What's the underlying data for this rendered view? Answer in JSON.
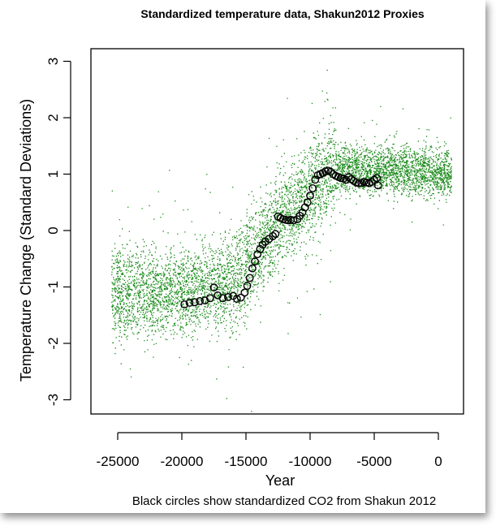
{
  "chart_data": {
    "type": "scatter",
    "title": "Standardized temperature data, Shakun2012 Proxies",
    "xlabel": "Year",
    "ylabel": "Temperature Change (Standard Deviations)",
    "footnote": "Black circles show standardized CO2 from Shakun 2012",
    "xlim": [
      -26000,
      1000
    ],
    "ylim": [
      -3.2,
      3.2
    ],
    "xticks": [
      -25000,
      -20000,
      -15000,
      -10000,
      -5000,
      0
    ],
    "xtick_labels": [
      "-25000",
      "-20000",
      "-15000",
      "-10000",
      "-5000",
      "0"
    ],
    "yticks": [
      -3,
      -2,
      -1,
      0,
      1,
      2,
      3
    ],
    "ytick_labels": [
      "-3",
      "-2",
      "-1",
      "0",
      "1",
      "2",
      "3"
    ],
    "series": [
      {
        "marker": "dot",
        "color": "#1a8a1a",
        "trend": [
          [
            -26000,
            -1.1
          ],
          [
            -22000,
            -1.1
          ],
          [
            -18000,
            -1.0
          ],
          [
            -16000,
            -0.85
          ],
          [
            -15000,
            -0.6
          ],
          [
            -14000,
            -0.3
          ],
          [
            -13000,
            0.05
          ],
          [
            -12000,
            0.25
          ],
          [
            -11000,
            0.45
          ],
          [
            -10000,
            0.7
          ],
          [
            -9000,
            0.95
          ],
          [
            -8000,
            1.1
          ],
          [
            -6000,
            1.1
          ],
          [
            -3000,
            1.1
          ],
          [
            1000,
            1.0
          ]
        ]
      },
      {
        "marker": "open-circle",
        "color": "#000000",
        "values": [
          [
            -19800,
            -1.31
          ],
          [
            -19400,
            -1.28
          ],
          [
            -19000,
            -1.27
          ],
          [
            -18600,
            -1.25
          ],
          [
            -18200,
            -1.24
          ],
          [
            -17800,
            -1.2
          ],
          [
            -17500,
            -1.01
          ],
          [
            -17200,
            -1.15
          ],
          [
            -16800,
            -1.2
          ],
          [
            -16400,
            -1.18
          ],
          [
            -16000,
            -1.16
          ],
          [
            -15700,
            -1.21
          ],
          [
            -15400,
            -1.19
          ],
          [
            -15100,
            -1.1
          ],
          [
            -14900,
            -0.98
          ],
          [
            -14700,
            -0.84
          ],
          [
            -14500,
            -0.67
          ],
          [
            -14300,
            -0.55
          ],
          [
            -14100,
            -0.42
          ],
          [
            -13900,
            -0.33
          ],
          [
            -13700,
            -0.25
          ],
          [
            -13500,
            -0.2
          ],
          [
            -13200,
            -0.15
          ],
          [
            -12900,
            -0.1
          ],
          [
            -12700,
            -0.06
          ],
          [
            -12500,
            0.25
          ],
          [
            -12300,
            0.22
          ],
          [
            -12100,
            0.2
          ],
          [
            -11900,
            0.19
          ],
          [
            -11700,
            0.18
          ],
          [
            -11500,
            0.19
          ],
          [
            -11300,
            0.18
          ],
          [
            -11000,
            0.2
          ],
          [
            -10800,
            0.26
          ],
          [
            -10600,
            0.32
          ],
          [
            -10400,
            0.41
          ],
          [
            -10200,
            0.5
          ],
          [
            -10000,
            0.62
          ],
          [
            -9800,
            0.75
          ],
          [
            -9600,
            0.9
          ],
          [
            -9400,
            0.98
          ],
          [
            -9200,
            1.0
          ],
          [
            -9000,
            1.02
          ],
          [
            -8800,
            1.05
          ],
          [
            -8600,
            1.06
          ],
          [
            -8400,
            1.04
          ],
          [
            -8200,
            1.0
          ],
          [
            -8000,
            0.97
          ],
          [
            -7800,
            0.95
          ],
          [
            -7600,
            0.93
          ],
          [
            -7400,
            0.92
          ],
          [
            -7200,
            0.9
          ],
          [
            -7000,
            0.95
          ],
          [
            -6800,
            0.91
          ],
          [
            -6600,
            0.88
          ],
          [
            -6400,
            0.85
          ],
          [
            -6200,
            0.84
          ],
          [
            -6000,
            0.84
          ],
          [
            -5800,
            0.86
          ],
          [
            -5600,
            0.85
          ],
          [
            -5400,
            0.84
          ],
          [
            -5200,
            0.86
          ],
          [
            -5000,
            0.9
          ],
          [
            -4800,
            0.93
          ],
          [
            -4700,
            0.8
          ]
        ]
      }
    ],
    "grid": false
  }
}
